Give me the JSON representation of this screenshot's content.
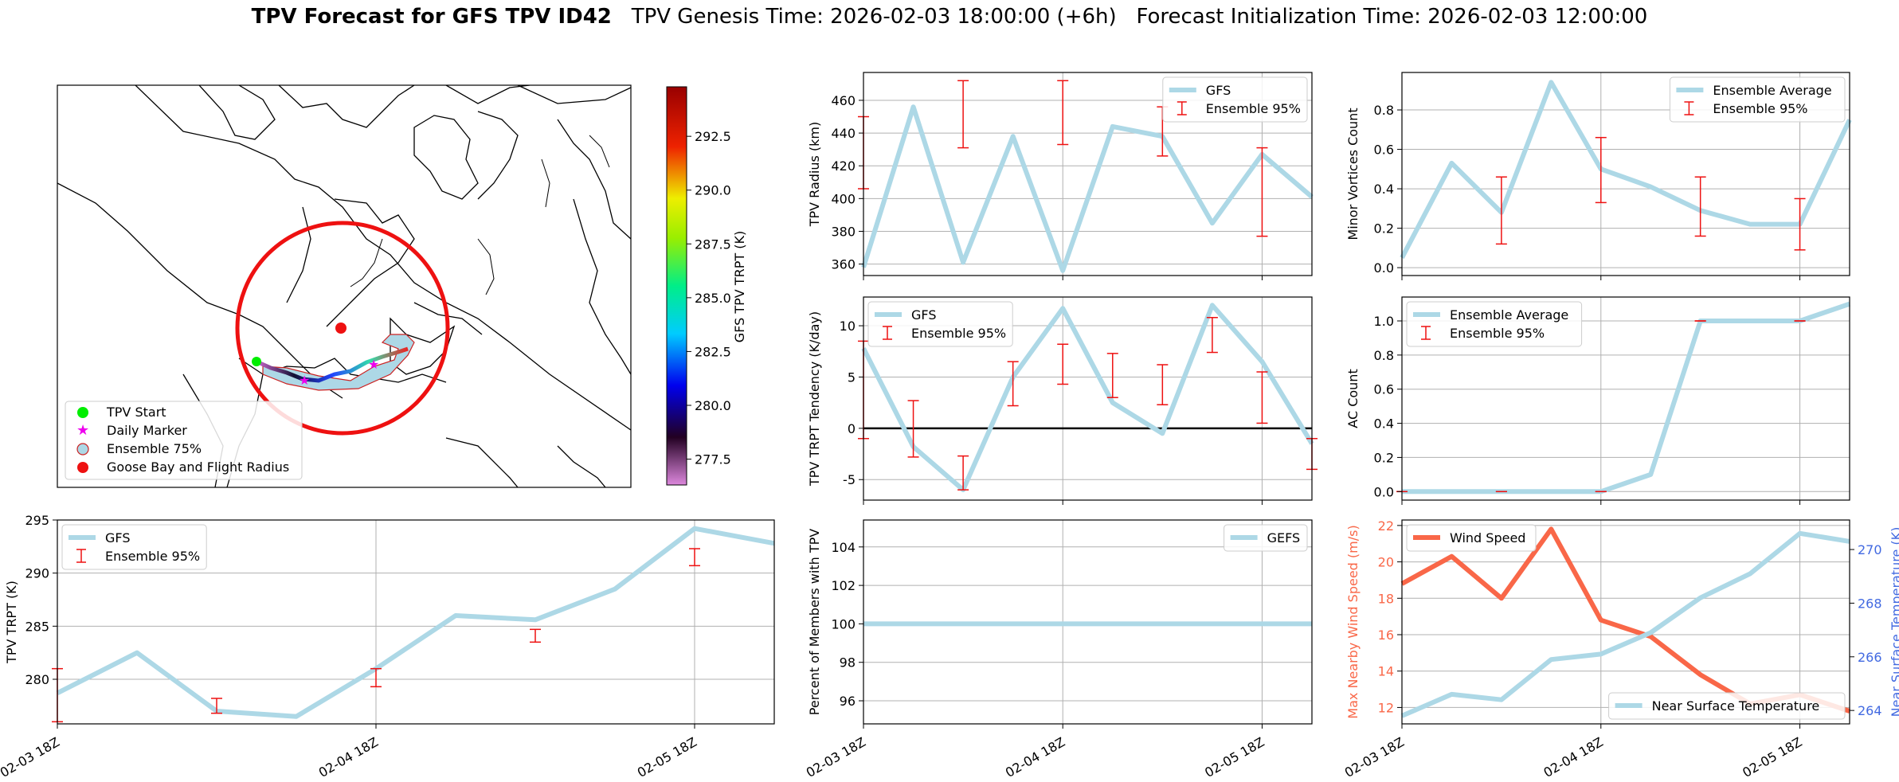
{
  "figure": {
    "title_bold": "TPV Forecast for GFS TPV ID42",
    "title_genesis": "TPV Genesis Time: 2026-02-03 18:00:00 (+6h)",
    "title_init": "Forecast Initialization Time: 2026-02-03 12:00:00"
  },
  "map": {
    "colorbar_label": "GFS TPV TRPT (K)",
    "colorbar_ticks": [
      "277.5",
      "280.0",
      "282.5",
      "285.0",
      "287.5",
      "290.0",
      "292.5"
    ],
    "colorbar_range": [
      276.3,
      294.8
    ],
    "legend": [
      "TPV Start",
      "Daily Marker",
      "Ensemble 75%",
      "Goose Bay and Flight Radius"
    ],
    "colors": {
      "start": "#00ee00",
      "daily": "#ee00ee",
      "ensemble": "#add8e6",
      "goose": "#ee1111"
    }
  },
  "chart_data": [
    {
      "id": "radius",
      "type": "line",
      "ylabel": "TPV Radius (km)",
      "series": [
        {
          "name": "GFS",
          "x": [
            0,
            1,
            2,
            3,
            4,
            5,
            6,
            7,
            8,
            9
          ],
          "values": [
            358,
            456,
            361,
            438,
            356,
            444,
            438,
            385,
            427,
            401
          ]
        },
        {
          "name": "Ensemble 95%",
          "kind": "errorbar",
          "x": [
            0,
            2,
            4,
            6,
            8
          ],
          "low": [
            406,
            431,
            433,
            426,
            377
          ],
          "high": [
            450,
            472,
            472,
            456,
            431
          ]
        }
      ],
      "yticks": [
        360,
        380,
        400,
        420,
        440,
        460
      ],
      "ylim": [
        353,
        477
      ],
      "legend": "upper right"
    },
    {
      "id": "minor",
      "type": "line",
      "ylabel": "Minor Vortices Count",
      "series": [
        {
          "name": "Ensemble Average",
          "x": [
            0,
            1,
            2,
            3,
            4,
            5,
            6,
            7,
            8,
            9
          ],
          "values": [
            0.05,
            0.53,
            0.28,
            0.94,
            0.5,
            0.41,
            0.29,
            0.22,
            0.22,
            0.75
          ]
        },
        {
          "name": "Ensemble 95%",
          "kind": "errorbar",
          "x": [
            2,
            4,
            6,
            8
          ],
          "low": [
            0.12,
            0.33,
            0.16,
            0.09
          ],
          "high": [
            0.46,
            0.66,
            0.46,
            0.35
          ]
        }
      ],
      "yticks": [
        0.0,
        0.2,
        0.4,
        0.6,
        0.8
      ],
      "yticklabels": [
        "0.0",
        "0.2",
        "0.4",
        "0.6",
        "0.8"
      ],
      "ylim": [
        -0.04,
        0.99
      ],
      "legend": "upper right"
    },
    {
      "id": "tendency",
      "type": "line",
      "ylabel": "TPV TRPT Tendency (K/day)",
      "series": [
        {
          "name": "GFS",
          "x": [
            0,
            1,
            2,
            3,
            4,
            5,
            6,
            7,
            8,
            9
          ],
          "values": [
            7.8,
            -1.8,
            -6.0,
            5.0,
            11.7,
            2.5,
            -0.5,
            12.0,
            6.5,
            -1.5
          ]
        },
        {
          "name": "Ensemble 95%",
          "kind": "errorbar",
          "x": [
            0,
            1,
            2,
            3,
            4,
            5,
            6,
            7,
            8,
            9
          ],
          "low": [
            -1.0,
            -2.8,
            -6.0,
            2.2,
            4.3,
            3.0,
            2.3,
            7.4,
            0.5,
            -4.0
          ],
          "high": [
            8.5,
            2.7,
            -2.7,
            6.5,
            8.2,
            7.3,
            6.2,
            10.8,
            5.5,
            -1.0
          ]
        }
      ],
      "zero_line": true,
      "yticks": [
        -5,
        0,
        5,
        10
      ],
      "ylim": [
        -7,
        12.8
      ],
      "legend": "upper left"
    },
    {
      "id": "ac",
      "type": "line",
      "ylabel": "AC Count",
      "series": [
        {
          "name": "Ensemble Average",
          "x": [
            0,
            1,
            2,
            3,
            4,
            5,
            6,
            7,
            8,
            9
          ],
          "values": [
            0,
            0,
            0,
            0,
            0,
            0.1,
            1.0,
            1.0,
            1.0,
            1.1
          ]
        },
        {
          "name": "Ensemble 95%",
          "kind": "errorbar",
          "x": [
            0,
            2,
            4,
            6,
            8
          ],
          "low": [
            0,
            0,
            0,
            1,
            1
          ],
          "high": [
            0,
            0,
            0,
            1,
            1
          ]
        }
      ],
      "yticks": [
        0.0,
        0.2,
        0.4,
        0.6,
        0.8,
        1.0
      ],
      "yticklabels": [
        "0.0",
        "0.2",
        "0.4",
        "0.6",
        "0.8",
        "1.0"
      ],
      "ylim": [
        -0.05,
        1.14
      ],
      "legend": "upper left"
    },
    {
      "id": "trpt",
      "type": "line",
      "ylabel": "TPV TRPT (K)",
      "series": [
        {
          "name": "GFS",
          "x": [
            0,
            1,
            2,
            3,
            4,
            5,
            6,
            7,
            8,
            9
          ],
          "values": [
            278.7,
            282.5,
            277.0,
            276.5,
            281.0,
            286.0,
            285.6,
            288.5,
            294.2,
            292.8
          ]
        },
        {
          "name": "Ensemble 95%",
          "kind": "errorbar",
          "x": [
            0,
            2,
            4,
            6,
            8
          ],
          "low": [
            276.0,
            276.8,
            279.3,
            283.5,
            290.7
          ],
          "high": [
            281.0,
            278.2,
            281.0,
            284.7,
            292.3
          ]
        }
      ],
      "yticks": [
        280,
        285,
        290,
        295
      ],
      "ylim": [
        275.8,
        295.0
      ],
      "legend": "upper left",
      "xtick_positions": [
        0,
        4,
        8
      ],
      "xticklabels": [
        "02-03 18Z",
        "02-04 18Z",
        "02-05 18Z"
      ]
    },
    {
      "id": "percent",
      "type": "line",
      "ylabel": "Percent of Members with TPV",
      "series": [
        {
          "name": "GEFS",
          "x": [
            0,
            1,
            2,
            3,
            4,
            5,
            6,
            7,
            8,
            9
          ],
          "values": [
            100,
            100,
            100,
            100,
            100,
            100,
            100,
            100,
            100,
            100
          ]
        }
      ],
      "yticks": [
        96,
        98,
        100,
        102,
        104
      ],
      "ylim": [
        94.8,
        105.4
      ],
      "legend": "upper right",
      "xtick_positions": [
        0,
        4,
        8
      ],
      "xticklabels": [
        "02-03 18Z",
        "02-04 18Z",
        "02-05 18Z"
      ]
    },
    {
      "id": "wind_temp",
      "type": "line",
      "ylabel": "Max Nearby Wind Speed (m/s)",
      "y2label": "Near Surface Temperature (K)",
      "series": [
        {
          "name": "Wind Speed",
          "axis": "left",
          "x": [
            0,
            1,
            2,
            3,
            4,
            5,
            6,
            7,
            8,
            9
          ],
          "values": [
            18.8,
            20.3,
            18.0,
            21.8,
            16.8,
            15.9,
            13.8,
            12.2,
            12.7,
            11.8
          ]
        },
        {
          "name": "Near Surface Temperature",
          "axis": "right",
          "x": [
            0,
            1,
            2,
            3,
            4,
            5,
            6,
            7,
            8,
            9
          ],
          "values": [
            263.8,
            264.6,
            264.4,
            265.9,
            266.1,
            266.9,
            268.2,
            269.1,
            270.6,
            270.3
          ]
        }
      ],
      "yticks": [
        12,
        14,
        16,
        18,
        20,
        22
      ],
      "ylim": [
        11.1,
        22.3
      ],
      "y2ticks": [
        264,
        266,
        268,
        270
      ],
      "y2lim": [
        263.5,
        271.1
      ],
      "xtick_positions": [
        0,
        4,
        8
      ],
      "xticklabels": [
        "02-03 18Z",
        "02-04 18Z",
        "02-05 18Z"
      ]
    }
  ]
}
